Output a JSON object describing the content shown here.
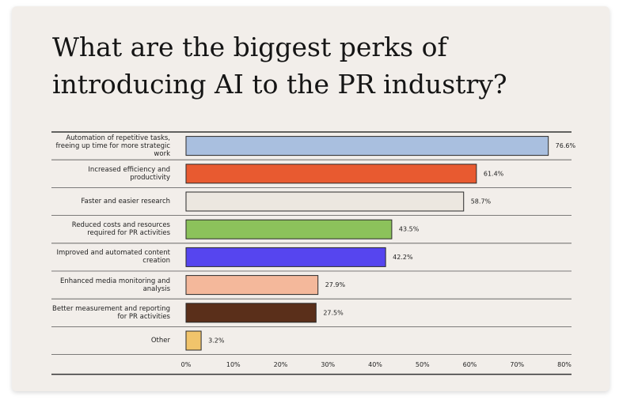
{
  "chart_data": {
    "type": "bar",
    "orientation": "horizontal",
    "title": "What are the biggest perks of introducing AI to the PR industry?",
    "categories": [
      "Automation of repetitive tasks, freeing up time for more strategic work",
      "Increased efficiency and productivity",
      "Faster and easier research",
      "Reduced costs and resources required for PR activities",
      "Improved and automated content creation",
      "Enhanced media monitoring and analysis",
      "Better measurement and reporting for PR activities",
      "Other"
    ],
    "values": [
      76.6,
      61.4,
      58.7,
      43.5,
      42.2,
      27.9,
      27.5,
      3.2
    ],
    "value_labels": [
      "76.6%",
      "61.4%",
      "58.7%",
      "43.5%",
      "42.2%",
      "27.9%",
      "27.5%",
      "3.2%"
    ],
    "colors": [
      "#a9bfdf",
      "#e85a30",
      "#ece7e0",
      "#8cc25b",
      "#5645ef",
      "#f4b89b",
      "#5a2f1a",
      "#f1c46b"
    ],
    "xlim": [
      0,
      80
    ],
    "xticks": [
      {
        "value": 0,
        "label": "0%"
      },
      {
        "value": 10,
        "label": "10%"
      },
      {
        "value": 20,
        "label": "20%"
      },
      {
        "value": 30,
        "label": "30%"
      },
      {
        "value": 40,
        "label": "40%"
      },
      {
        "value": 50,
        "label": "50%"
      },
      {
        "value": 60,
        "label": "60%"
      },
      {
        "value": 70,
        "label": "70%"
      },
      {
        "value": 80,
        "label": "80%"
      }
    ]
  }
}
